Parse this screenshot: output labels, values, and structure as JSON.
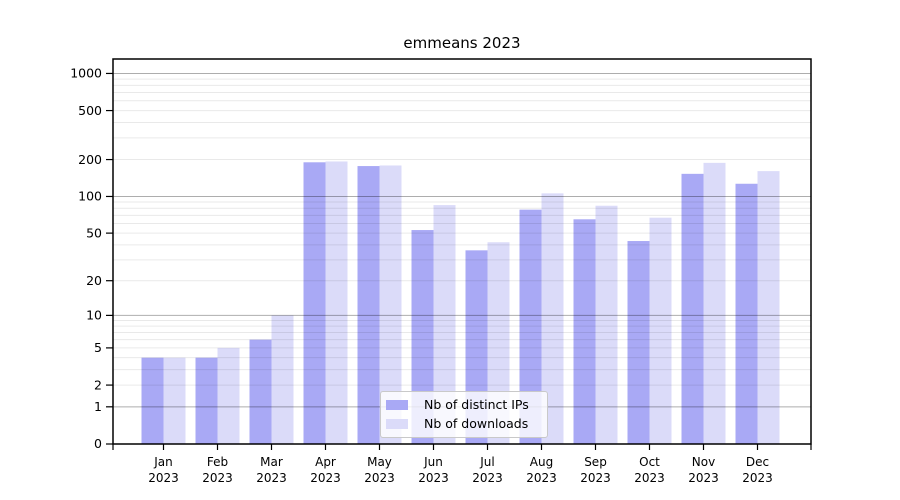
{
  "chart_data": {
    "type": "bar",
    "title": "emmeans 2023",
    "yscale": "log1p",
    "ylim": [
      0,
      1310
    ],
    "yticks": [
      0,
      1,
      2,
      5,
      10,
      20,
      50,
      100,
      200,
      500,
      1000
    ],
    "grid": "on",
    "grid_major": [
      1,
      10,
      100,
      1000
    ],
    "grid_minor": [
      2,
      3,
      4,
      5,
      6,
      7,
      8,
      9,
      20,
      30,
      40,
      50,
      60,
      70,
      80,
      90,
      200,
      300,
      400,
      500,
      600,
      700,
      800,
      900
    ],
    "legend_position": "bottom-center",
    "categories": [
      {
        "month": "Jan",
        "year": "2023"
      },
      {
        "month": "Feb",
        "year": "2023"
      },
      {
        "month": "Mar",
        "year": "2023"
      },
      {
        "month": "Apr",
        "year": "2023"
      },
      {
        "month": "May",
        "year": "2023"
      },
      {
        "month": "Jun",
        "year": "2023"
      },
      {
        "month": "Jul",
        "year": "2023"
      },
      {
        "month": "Aug",
        "year": "2023"
      },
      {
        "month": "Sep",
        "year": "2023"
      },
      {
        "month": "Oct",
        "year": "2023"
      },
      {
        "month": "Nov",
        "year": "2023"
      },
      {
        "month": "Dec",
        "year": "2023"
      }
    ],
    "series": [
      {
        "key": "distinct-ips",
        "name": "Nb of distinct IPs",
        "color": "#a9a9f5",
        "values": [
          4,
          4,
          6,
          190,
          177,
          53,
          36,
          78,
          65,
          43,
          153,
          127
        ]
      },
      {
        "key": "downloads",
        "name": "Nb of downloads",
        "color": "#dbdbf9",
        "values": [
          4,
          5,
          10,
          193,
          179,
          85,
          42,
          106,
          84,
          67,
          188,
          161
        ]
      }
    ]
  }
}
